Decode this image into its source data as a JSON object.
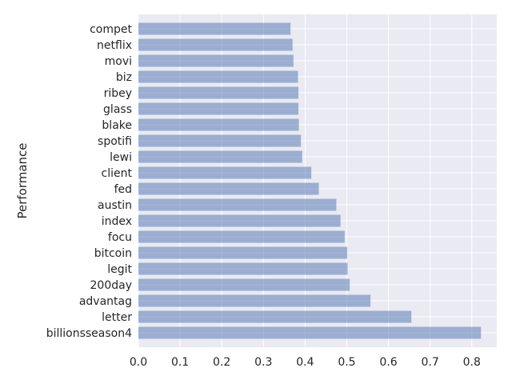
{
  "chart_data": {
    "type": "bar",
    "orientation": "horizontal",
    "title": "",
    "xlabel": "",
    "ylabel": "Performance",
    "categories": [
      "compet",
      "netflix",
      "movi",
      "biz",
      "ribey",
      "glass",
      "blake",
      "spotifi",
      "lewi",
      "client",
      "fed",
      "austin",
      "index",
      "focu",
      "bitcoin",
      "legit",
      "200day",
      "advantag",
      "letter",
      "billionsseason4"
    ],
    "values": [
      0.365,
      0.37,
      0.372,
      0.383,
      0.384,
      0.384,
      0.385,
      0.39,
      0.393,
      0.415,
      0.433,
      0.475,
      0.485,
      0.495,
      0.501,
      0.502,
      0.507,
      0.557,
      0.655,
      0.822
    ],
    "xlim": [
      0,
      0.86
    ],
    "xticks": [
      "0.0",
      "0.1",
      "0.2",
      "0.3",
      "0.4",
      "0.5",
      "0.6",
      "0.7",
      "0.8"
    ],
    "grid": true,
    "bar_color": "#4c72b0",
    "background_color": "#eaeaf2",
    "grid_color": "#ffffff"
  }
}
